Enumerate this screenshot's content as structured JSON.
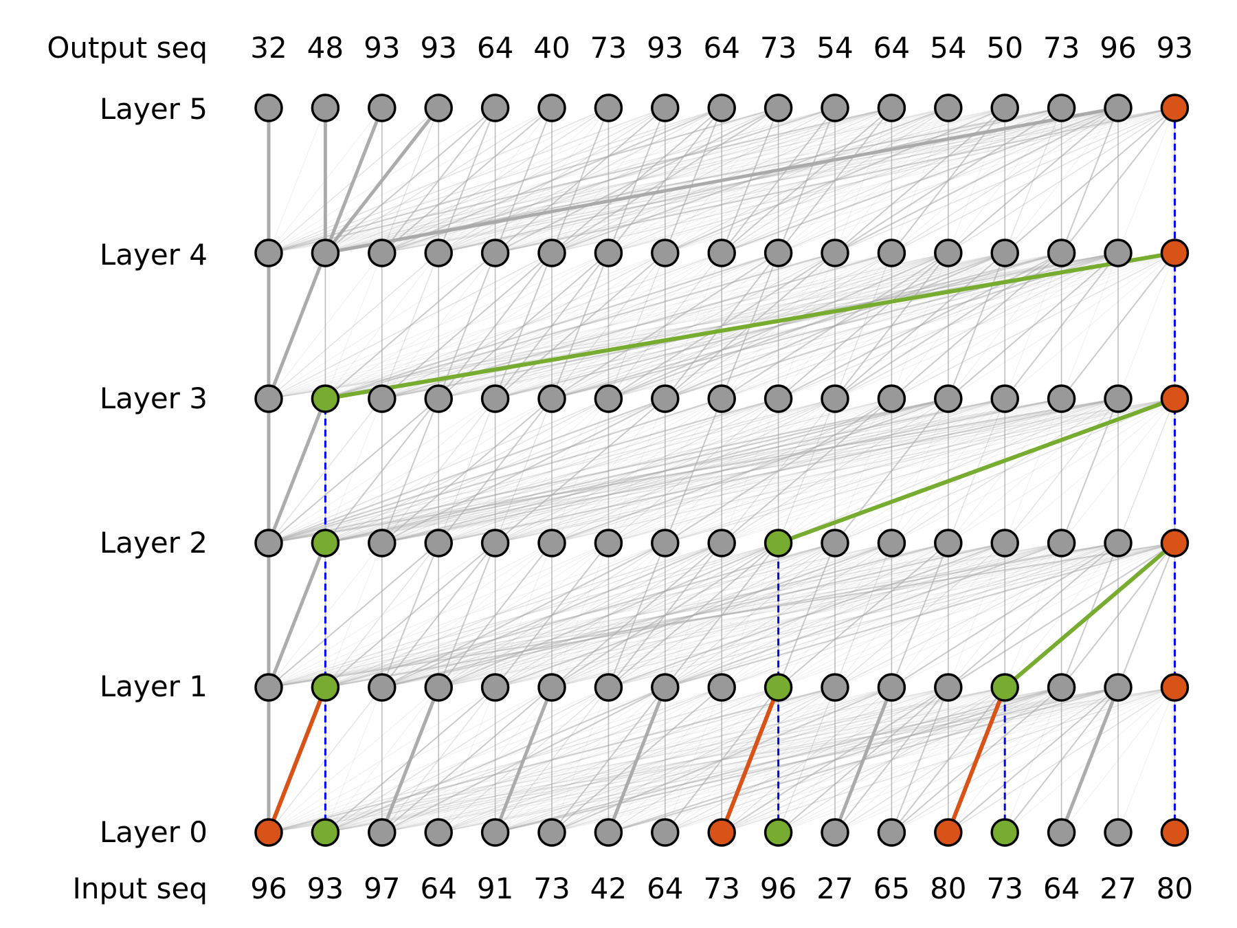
{
  "labels": {
    "output_row": "Output seq",
    "input_row": "Input seq",
    "layers": [
      "Layer 0",
      "Layer 1",
      "Layer 2",
      "Layer 3",
      "Layer 4",
      "Layer 5"
    ]
  },
  "output_seq": [
    "32",
    "48",
    "93",
    "93",
    "64",
    "40",
    "73",
    "93",
    "64",
    "73",
    "54",
    "64",
    "54",
    "50",
    "73",
    "96",
    "93"
  ],
  "input_seq": [
    "96",
    "93",
    "97",
    "64",
    "91",
    "73",
    "42",
    "64",
    "73",
    "96",
    "27",
    "65",
    "80",
    "73",
    "64",
    "27",
    "80"
  ],
  "colors": {
    "node_default": "#999999",
    "node_orange": "#d95319",
    "node_green": "#77ac30",
    "edge_gray": "#a8a8a8",
    "edge_orange": "#d95319",
    "edge_green": "#77ac30",
    "residual_dashed": "#0000ff",
    "node_stroke": "#000000"
  },
  "node_colors": [
    [
      "orange",
      "green",
      "default",
      "default",
      "default",
      "default",
      "default",
      "default",
      "orange",
      "green",
      "default",
      "default",
      "orange",
      "green",
      "default",
      "default",
      "orange"
    ],
    [
      "default",
      "green",
      "default",
      "default",
      "default",
      "default",
      "default",
      "default",
      "default",
      "green",
      "default",
      "default",
      "default",
      "green",
      "default",
      "default",
      "orange"
    ],
    [
      "default",
      "green",
      "default",
      "default",
      "default",
      "default",
      "default",
      "default",
      "default",
      "green",
      "default",
      "default",
      "default",
      "default",
      "default",
      "default",
      "orange"
    ],
    [
      "default",
      "green",
      "default",
      "default",
      "default",
      "default",
      "default",
      "default",
      "default",
      "default",
      "default",
      "default",
      "default",
      "default",
      "default",
      "default",
      "orange"
    ],
    [
      "default",
      "default",
      "default",
      "default",
      "default",
      "default",
      "default",
      "default",
      "default",
      "default",
      "default",
      "default",
      "default",
      "default",
      "default",
      "default",
      "orange"
    ],
    [
      "default",
      "default",
      "default",
      "default",
      "default",
      "default",
      "default",
      "default",
      "default",
      "default",
      "default",
      "default",
      "default",
      "default",
      "default",
      "default",
      "orange"
    ]
  ],
  "highlight_edges": [
    {
      "from_layer": 0,
      "from_pos": 0,
      "to_layer": 1,
      "to_pos": 1,
      "color": "orange"
    },
    {
      "from_layer": 0,
      "from_pos": 8,
      "to_layer": 1,
      "to_pos": 9,
      "color": "orange"
    },
    {
      "from_layer": 0,
      "from_pos": 12,
      "to_layer": 1,
      "to_pos": 13,
      "color": "orange"
    },
    {
      "from_layer": 1,
      "from_pos": 13,
      "to_layer": 2,
      "to_pos": 16,
      "color": "green"
    },
    {
      "from_layer": 2,
      "from_pos": 9,
      "to_layer": 3,
      "to_pos": 16,
      "color": "green"
    },
    {
      "from_layer": 3,
      "from_pos": 1,
      "to_layer": 4,
      "to_pos": 16,
      "color": "green"
    }
  ],
  "residual_links": [
    {
      "pos": 1,
      "from_layer": 0,
      "to_layer": 3
    },
    {
      "pos": 9,
      "from_layer": 0,
      "to_layer": 2
    },
    {
      "pos": 13,
      "from_layer": 0,
      "to_layer": 1
    },
    {
      "pos": 16,
      "from_layer": 0,
      "to_layer": 5
    }
  ],
  "strong_gray_edges": [
    {
      "from_layer": 0,
      "from_pos": 0,
      "to_layer": 1,
      "to_pos": 0
    },
    {
      "from_layer": 0,
      "from_pos": 2,
      "to_layer": 1,
      "to_pos": 3
    },
    {
      "from_layer": 0,
      "from_pos": 4,
      "to_layer": 1,
      "to_pos": 5
    },
    {
      "from_layer": 0,
      "from_pos": 6,
      "to_layer": 1,
      "to_pos": 7
    },
    {
      "from_layer": 0,
      "from_pos": 10,
      "to_layer": 1,
      "to_pos": 11
    },
    {
      "from_layer": 0,
      "from_pos": 14,
      "to_layer": 1,
      "to_pos": 15
    },
    {
      "from_layer": 1,
      "from_pos": 0,
      "to_layer": 2,
      "to_pos": 0
    },
    {
      "from_layer": 1,
      "from_pos": 0,
      "to_layer": 2,
      "to_pos": 1
    },
    {
      "from_layer": 2,
      "from_pos": 0,
      "to_layer": 3,
      "to_pos": 0
    },
    {
      "from_layer": 2,
      "from_pos": 0,
      "to_layer": 3,
      "to_pos": 1
    },
    {
      "from_layer": 3,
      "from_pos": 0,
      "to_layer": 4,
      "to_pos": 0
    },
    {
      "from_layer": 3,
      "from_pos": 0,
      "to_layer": 4,
      "to_pos": 1
    },
    {
      "from_layer": 4,
      "from_pos": 0,
      "to_layer": 5,
      "to_pos": 0
    },
    {
      "from_layer": 4,
      "from_pos": 1,
      "to_layer": 5,
      "to_pos": 1
    },
    {
      "from_layer": 4,
      "from_pos": 1,
      "to_layer": 5,
      "to_pos": 2
    },
    {
      "from_layer": 4,
      "from_pos": 1,
      "to_layer": 5,
      "to_pos": 3
    },
    {
      "from_layer": 4,
      "from_pos": 1,
      "to_layer": 5,
      "to_pos": 15
    }
  ]
}
